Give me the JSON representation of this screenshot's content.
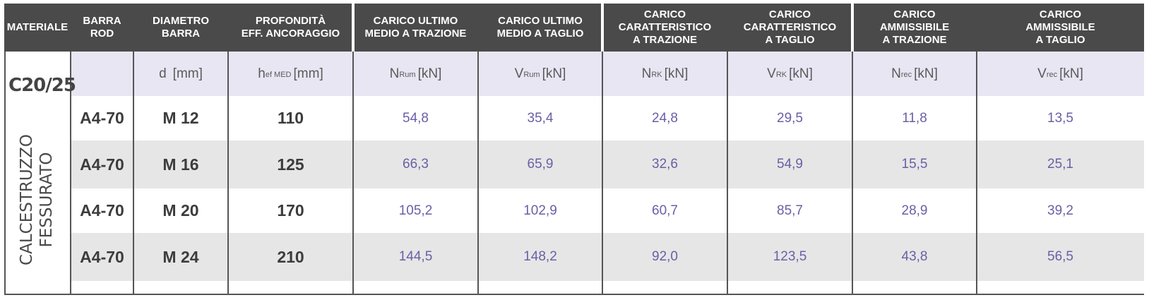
{
  "headers": [
    {
      "line1": "MATERIALE",
      "line2": "",
      "line3": ""
    },
    {
      "line1": "BARRA",
      "line2": "ROD",
      "line3": ""
    },
    {
      "line1": "DIAMETRO",
      "line2": "BARRA",
      "line3": ""
    },
    {
      "line1": "PROFONDITÀ",
      "line2": "EFF. ANCORAGGIO",
      "line3": ""
    },
    {
      "line1": "CARICO ULTIMO",
      "line2": "MEDIO A TRAZIONE",
      "line3": ""
    },
    {
      "line1": "CARICO ULTIMO",
      "line2": "MEDIO A TAGLIO",
      "line3": ""
    },
    {
      "line1": "CARICO",
      "line2": "CARATTERISTICO",
      "line3": "A TRAZIONE"
    },
    {
      "line1": "CARICO",
      "line2": "CARATTERISTICO",
      "line3": "A TAGLIO"
    },
    {
      "line1": "CARICO",
      "line2": "AMMISSIBILE",
      "line3": "A TRAZIONE"
    },
    {
      "line1": "CARICO",
      "line2": "AMMISSIBILE",
      "line3": "A TAGLIO"
    }
  ],
  "units": [
    {
      "main": "",
      "sub": "",
      "tail": ""
    },
    {
      "main": "",
      "sub": "",
      "tail": ""
    },
    {
      "main": "d",
      "sub": "",
      "tail": "[mm]"
    },
    {
      "main": "h",
      "sub": "ef MED",
      "tail": "[mm]"
    },
    {
      "main": "N",
      "sub": "Rum",
      "tail": "[kN]"
    },
    {
      "main": "V",
      "sub": "Rum",
      "tail": "[kN]"
    },
    {
      "main": "N",
      "sub": "RK",
      "tail": "[kN]"
    },
    {
      "main": "V",
      "sub": "RK",
      "tail": "[kN]"
    },
    {
      "main": "N",
      "sub": "rec",
      "tail": "[kN]"
    },
    {
      "main": "V",
      "sub": "rec",
      "tail": "[kN]"
    }
  ],
  "material": {
    "grade": "C20/25",
    "line1": "CALCESTRUZZO",
    "line2": "FESSURATO"
  },
  "rows": [
    {
      "barra": "A4-70",
      "diametro": "M 12",
      "hef": "110",
      "values": [
        "54,8",
        "35,4",
        "24,8",
        "29,5",
        "11,8",
        "13,5"
      ]
    },
    {
      "barra": "A4-70",
      "diametro": "M 16",
      "hef": "125",
      "values": [
        "66,3",
        "65,9",
        "32,6",
        "54,9",
        "15,5",
        "25,1"
      ]
    },
    {
      "barra": "A4-70",
      "diametro": "M 20",
      "hef": "170",
      "values": [
        "105,2",
        "102,9",
        "60,7",
        "85,7",
        "28,9",
        "39,2"
      ]
    },
    {
      "barra": "A4-70",
      "diametro": "M 24",
      "hef": "210",
      "values": [
        "144,5",
        "148,2",
        "92,0",
        "123,5",
        "43,8",
        "56,5"
      ]
    }
  ],
  "colors": {
    "header_bg": "#4a4a4a",
    "unit_row_bg": "#e8e6f3",
    "stripe_grey": "#e6e6e6",
    "value_text": "#6a5fa6"
  }
}
